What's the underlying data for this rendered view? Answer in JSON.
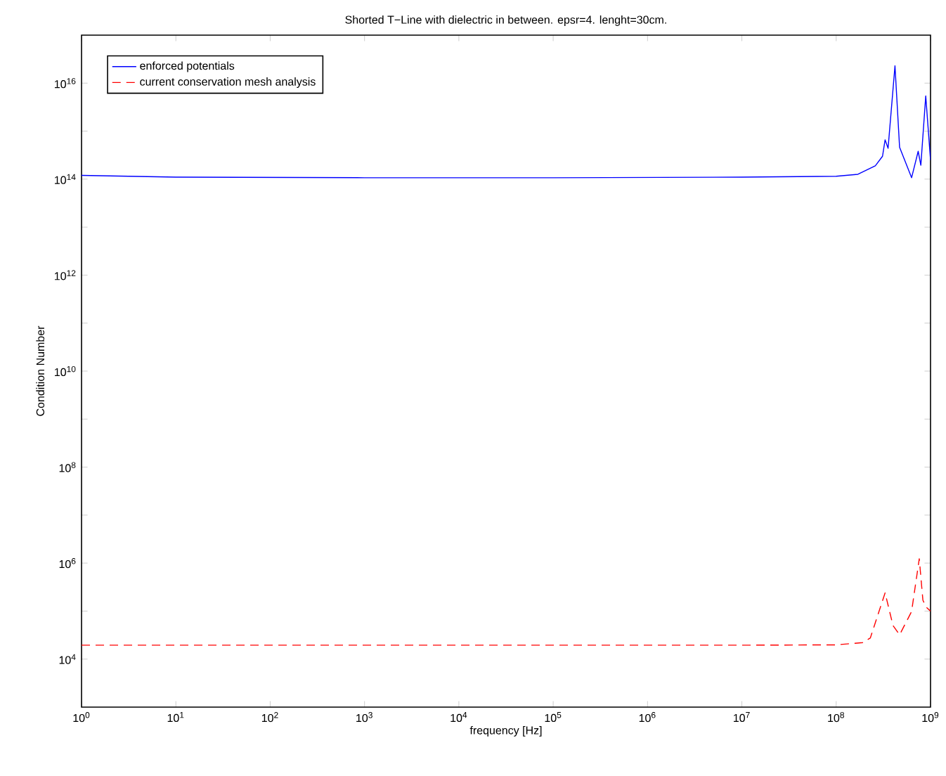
{
  "chart_data": {
    "type": "line",
    "title": "Shorted T−Line with dielectric in between. epsr=4. lenght=30cm.",
    "xlabel": "frequency [Hz]",
    "ylabel": "Condition Number",
    "log": "xy",
    "grid": false,
    "legend": "top left",
    "marker": "none",
    "xlim": [
      1,
      1000000000
    ],
    "ylim": [
      1000,
      100000000000000000
    ],
    "xticks": [
      {
        "value": 1,
        "label": "10$^{0}$"
      },
      {
        "value": 10,
        "label": "10$^{1}$"
      },
      {
        "value": 100,
        "label": "10$^{2}$"
      },
      {
        "value": 1000,
        "label": "10$^{3}$"
      },
      {
        "value": 10000,
        "label": "10$^{4}$"
      },
      {
        "value": 100000,
        "label": "10$^{5}$"
      },
      {
        "value": 1000000,
        "label": "10$^{6}$"
      },
      {
        "value": 10000000,
        "label": "10$^{7}$"
      },
      {
        "value": 100000000,
        "label": "10$^{8}$"
      },
      {
        "value": 1000000000,
        "label": "10$^{9}$"
      }
    ],
    "yticks": [
      {
        "value": 10000,
        "label": "10$^{4}$"
      },
      {
        "value": 100000,
        "label": null
      },
      {
        "value": 1000000,
        "label": "10$^{6}$"
      },
      {
        "value": 10000000,
        "label": null
      },
      {
        "value": 100000000,
        "label": "10$^{8}$"
      },
      {
        "value": 1000000000,
        "label": null
      },
      {
        "value": 10000000000,
        "label": "10$^{10}$"
      },
      {
        "value": 100000000000,
        "label": null
      },
      {
        "value": 1000000000000,
        "label": "10$^{12}$"
      },
      {
        "value": 10000000000000,
        "label": null
      },
      {
        "value": 100000000000000,
        "label": "10$^{14}$"
      },
      {
        "value": 1000000000000000,
        "label": null
      },
      {
        "value": 10000000000000000,
        "label": "10$^{16}$"
      }
    ],
    "series": [
      {
        "name": "enforced potentials",
        "color": "#0000ff",
        "line_style": "solid",
        "x": [
          1,
          10,
          1000,
          100000,
          10000000,
          100000000,
          170000000,
          260000000,
          310000000,
          330000000,
          355000000,
          420000000,
          470000000,
          630000000,
          740000000,
          790000000,
          890000000,
          1000000000
        ],
        "values": [
          120000000000000.0,
          110000000000000.0,
          107000000000000.0,
          107000000000000.0,
          110000000000000.0,
          115000000000000.0,
          126000000000000.0,
          190000000000000.0,
          300000000000000.0,
          660000000000000.0,
          440000000000000.0,
          2.3e+16,
          460000000000000.0,
          107000000000000.0,
          380000000000000.0,
          195000000000000.0,
          5400000000000000.0,
          250000000000000.0
        ]
      },
      {
        "name": "current conservation mesh analysis",
        "color": "#ff0000",
        "line_style": "dashed",
        "x": [
          1,
          10,
          1000,
          100000,
          10000000,
          100000000,
          190000000,
          230000000,
          330000000,
          400000000,
          470000000,
          630000000,
          760000000,
          830000000,
          890000000,
          1000000000
        ],
        "values": [
          19500,
          19500,
          19500,
          19500,
          19500,
          19800,
          22000,
          27500,
          240000,
          50000,
          32000,
          98000,
          1230000,
          170000,
          123000,
          100000
        ]
      }
    ]
  }
}
